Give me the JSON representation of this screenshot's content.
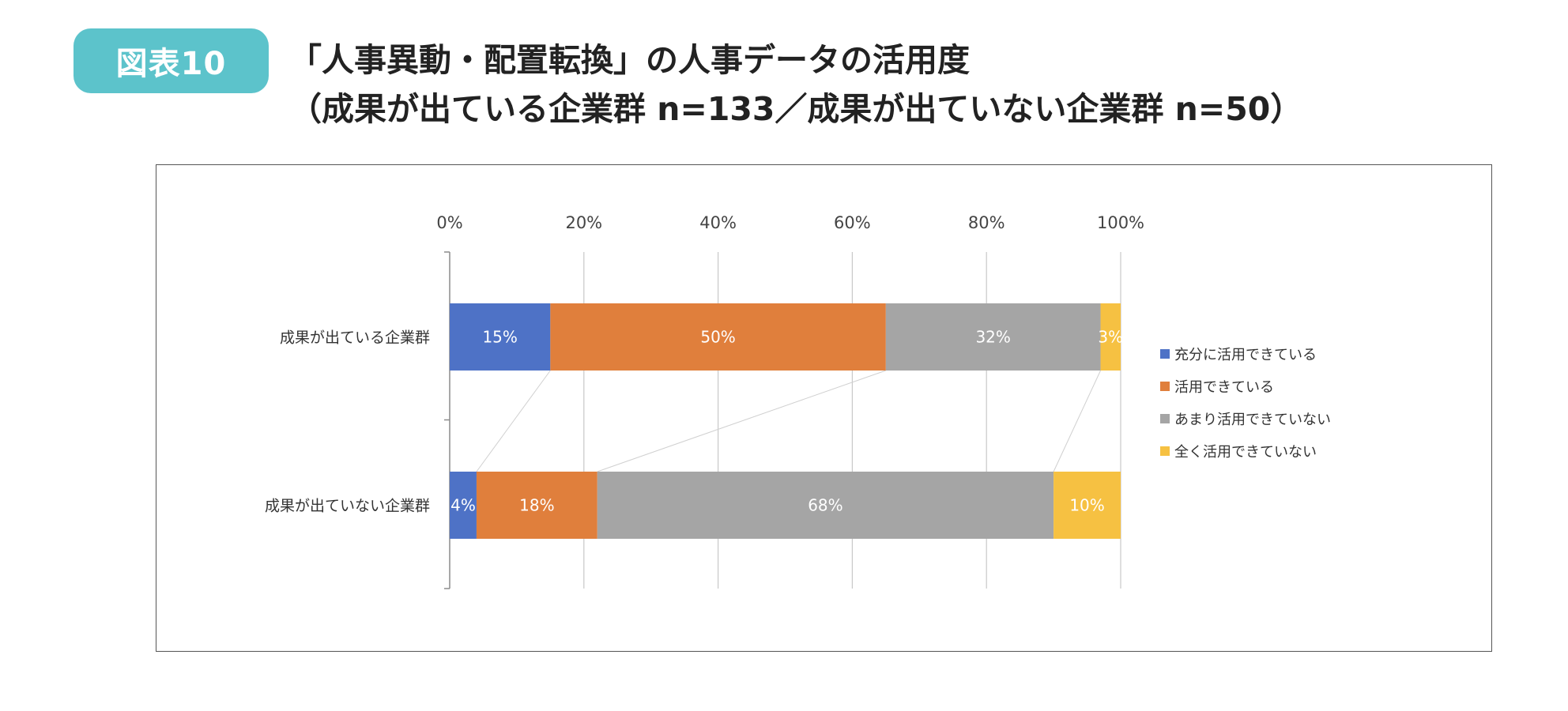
{
  "figure_label": "図表10",
  "title_line1": "「人事異動・配置転換」の人事データの活用度",
  "title_line2": "（成果が出ている企業群 n=133／成果が出ていない企業群 n=50）",
  "colors": {
    "badge": "#5cc3cb",
    "series": [
      "#4e72c6",
      "#e07f3c",
      "#a5a5a5",
      "#f6c142"
    ],
    "grid": "#c8c8c8",
    "axis": "#8c8c8c"
  },
  "chart_data": {
    "type": "bar",
    "orientation": "horizontal",
    "stacked": "percent",
    "categories": [
      "成果が出ている企業群",
      "成果が出ていない企業群"
    ],
    "series": [
      {
        "name": "充分に活用できている",
        "values": [
          15,
          4
        ],
        "labels": [
          "15%",
          "4%"
        ]
      },
      {
        "name": "活用できている",
        "values": [
          50,
          18
        ],
        "labels": [
          "50%",
          "18%"
        ]
      },
      {
        "name": "あまり活用できていない",
        "values": [
          32,
          68
        ],
        "labels": [
          "32%",
          "68%"
        ]
      },
      {
        "name": "全く活用できていない",
        "values": [
          3,
          10
        ],
        "labels": [
          "3%",
          "10%"
        ]
      }
    ],
    "xlim": [
      0,
      100
    ],
    "xticks": [
      "0%",
      "20%",
      "40%",
      "60%",
      "80%",
      "100%"
    ],
    "x_axis_position": "top",
    "grid": true,
    "series_lines": true,
    "legend_position": "right"
  }
}
